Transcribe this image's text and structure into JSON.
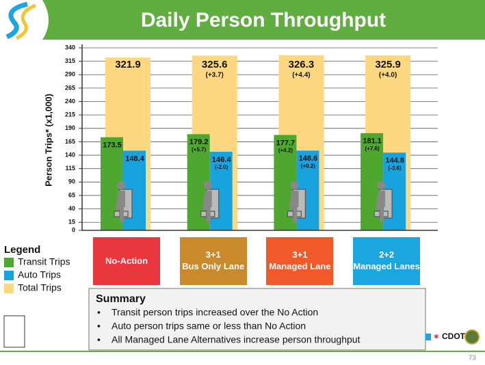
{
  "header": {
    "title": "Daily Person Throughput"
  },
  "chart_data": {
    "type": "bar",
    "y_label": "Person Trips* (x1,000)",
    "categories": [
      "No-Action",
      "3+1\nBus Only Lane",
      "3+1\nManaged Lane",
      "2+2\nManaged Lanes"
    ],
    "category_colors": [
      "#e8383d",
      "#c98a2c",
      "#f05a2a",
      "#1ba6e0"
    ],
    "ylim": [
      0,
      340
    ],
    "yticks": [
      0,
      15,
      40,
      65,
      90,
      115,
      140,
      165,
      190,
      215,
      240,
      265,
      290,
      315,
      340
    ],
    "grid": true,
    "legend_title": "Legend",
    "series": [
      {
        "name": "Transit Trips",
        "color": "#4ea72e",
        "values": [
          173.5,
          179.2,
          177.7,
          181.1
        ],
        "change_labels": [
          null,
          "(+5.7)",
          "(+4.2)",
          "(+7.6)"
        ]
      },
      {
        "name": "Auto Trips",
        "color": "#19a3de",
        "values": [
          148.4,
          146.4,
          148.6,
          144.8
        ],
        "change_labels": [
          null,
          "(-2.0)",
          "(+0.2)",
          "(-3.6)"
        ]
      },
      {
        "name": "Total Trips",
        "color": "#fdd880",
        "values": [
          321.9,
          325.6,
          326.3,
          325.9
        ],
        "change_labels": [
          null,
          "(+3.7)",
          "(+4.4)",
          "(+4.0)"
        ]
      }
    ]
  },
  "summary": {
    "title": "Summary",
    "bullets": [
      "Transit person trips increased over the No Action",
      "Auto person trips same or less than No Action",
      "All Managed Lane Alternatives increase person throughput"
    ]
  },
  "footer": {
    "logo": "CDOT",
    "page": "73"
  }
}
